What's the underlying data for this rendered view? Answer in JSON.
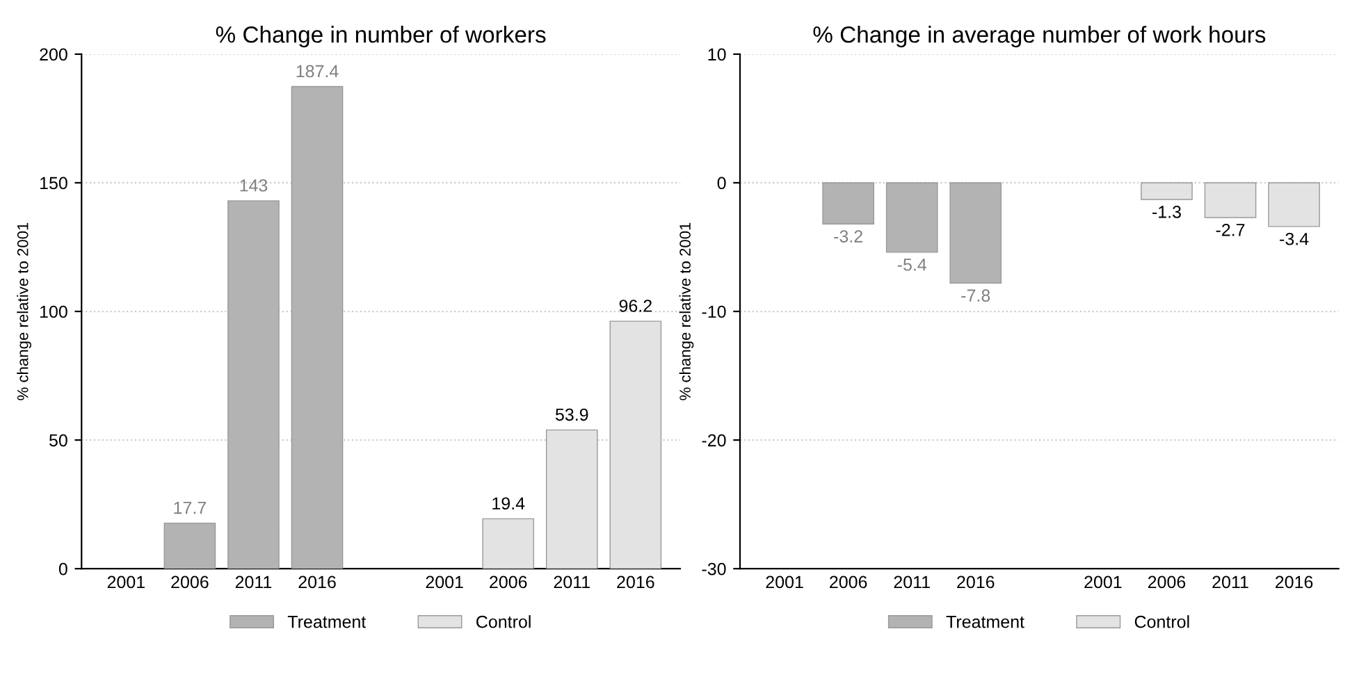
{
  "chart_data": [
    {
      "type": "bar",
      "title": "% Change in number of workers",
      "ylabel": "% change relative to 2001",
      "categories": [
        "2001",
        "2006",
        "2011",
        "2016",
        null,
        "2001",
        "2006",
        "2011",
        "2016"
      ],
      "series": [
        {
          "name": "Treatment",
          "color": "#b3b3b3",
          "values": [
            null,
            17.7,
            143,
            187.4,
            null,
            null,
            null,
            null,
            null
          ],
          "value_labels": [
            null,
            "17.7",
            "143",
            "187.4",
            null,
            null,
            null,
            null,
            null
          ]
        },
        {
          "name": "Control",
          "color": "#e3e3e3",
          "values": [
            null,
            null,
            null,
            null,
            null,
            null,
            19.4,
            53.9,
            96.2
          ],
          "value_labels": [
            null,
            null,
            null,
            null,
            null,
            null,
            "19.4",
            "53.9",
            "96.2"
          ]
        }
      ],
      "ylim": [
        0,
        200
      ],
      "yticks": [
        0,
        50,
        100,
        150,
        200
      ],
      "grid": "y",
      "legend": "bottom"
    },
    {
      "type": "bar",
      "title": "% Change in average number of work hours",
      "ylabel": "% change relative to 2001",
      "categories": [
        "2001",
        "2006",
        "2011",
        "2016",
        null,
        "2001",
        "2006",
        "2011",
        "2016"
      ],
      "series": [
        {
          "name": "Treatment",
          "color": "#b3b3b3",
          "values": [
            null,
            -3.2,
            -5.4,
            -7.8,
            null,
            null,
            null,
            null,
            null
          ],
          "value_labels": [
            null,
            "-3.2",
            "-5.4",
            "-7.8",
            null,
            null,
            null,
            null,
            null
          ]
        },
        {
          "name": "Control",
          "color": "#e3e3e3",
          "values": [
            null,
            null,
            null,
            null,
            null,
            null,
            -1.3,
            -2.7,
            -3.4
          ],
          "value_labels": [
            null,
            null,
            null,
            null,
            null,
            null,
            "-1.3",
            "-2.7",
            "-3.4"
          ]
        }
      ],
      "ylim": [
        -30,
        10
      ],
      "yticks": [
        -30,
        -20,
        -10,
        0,
        10
      ],
      "grid": "y",
      "legend": "bottom"
    }
  ]
}
